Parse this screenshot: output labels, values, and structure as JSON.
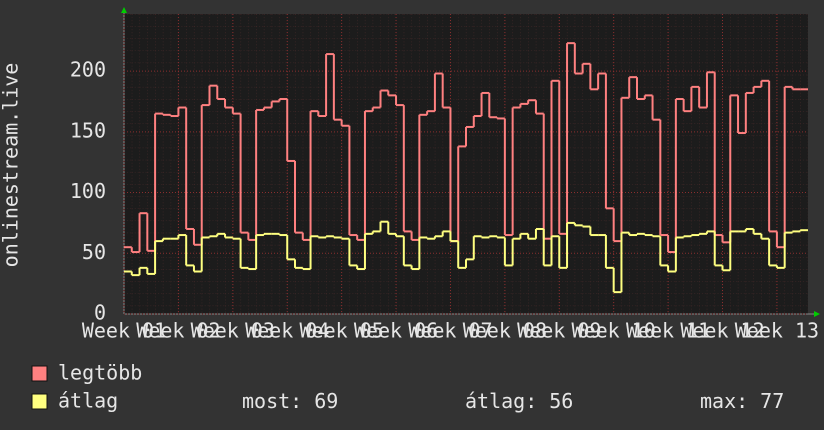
{
  "chart_data": {
    "type": "step-line",
    "y_label": "onlinestream.live",
    "xticks": [
      "Week 01",
      "Week 02",
      "Week 03",
      "Week 04",
      "Week 05",
      "Week 06",
      "Week 07",
      "Week 08",
      "Week 09",
      "Week 10",
      "Week 11",
      "Week 12",
      "Week 13"
    ],
    "ylim": [
      0,
      247
    ],
    "yticks": [
      0,
      50,
      100,
      150,
      200
    ],
    "grid": true,
    "series": [
      {
        "name": "legtöbb",
        "color": "#ff8080",
        "values": [
          55,
          51,
          83,
          52,
          165,
          164,
          163,
          170,
          70,
          57,
          172,
          188,
          177,
          170,
          165,
          67,
          61,
          168,
          170,
          175,
          177,
          126,
          67,
          61,
          167,
          163,
          214,
          160,
          155,
          65,
          61,
          167,
          170,
          184,
          180,
          172,
          68,
          61,
          164,
          167,
          198,
          170,
          60,
          138,
          154,
          163,
          182,
          162,
          161,
          65,
          170,
          173,
          176,
          165,
          62,
          192,
          66,
          223,
          198,
          206,
          185,
          198,
          87,
          60,
          178,
          195,
          177,
          180,
          160,
          65,
          51,
          177,
          167,
          187,
          170,
          199,
          65,
          59,
          180,
          149,
          182,
          187,
          192,
          68,
          55,
          187,
          185,
          185
        ]
      },
      {
        "name": "átlag",
        "color": "#ffff80",
        "values": [
          35,
          32,
          38,
          33,
          60,
          62,
          62,
          65,
          40,
          35,
          63,
          64,
          66,
          63,
          62,
          38,
          37,
          65,
          66,
          66,
          65,
          45,
          38,
          37,
          64,
          63,
          64,
          63,
          62,
          40,
          37,
          66,
          68,
          76,
          66,
          64,
          40,
          37,
          63,
          62,
          64,
          68,
          60,
          38,
          45,
          64,
          63,
          64,
          63,
          40,
          62,
          66,
          62,
          70,
          40,
          64,
          38,
          75,
          73,
          72,
          65,
          65,
          38,
          18,
          67,
          65,
          66,
          65,
          64,
          40,
          35,
          63,
          64,
          65,
          66,
          68,
          40,
          36,
          68,
          68,
          70,
          66,
          62,
          40,
          38,
          67,
          68,
          69
        ]
      }
    ],
    "stats": [
      {
        "label": "most:",
        "value": 69
      },
      {
        "label": "átlag:",
        "value": 56
      },
      {
        "label": "max:",
        "value": 77
      }
    ]
  }
}
